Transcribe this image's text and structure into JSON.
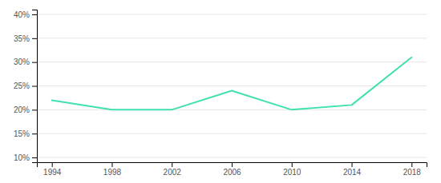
{
  "chart_data": {
    "type": "line",
    "x": [
      1994,
      1998,
      2002,
      2006,
      2010,
      2014,
      2018
    ],
    "values": [
      22,
      20,
      20,
      24,
      20,
      21,
      31
    ],
    "color": "#40e0b0",
    "xlim": [
      1993,
      2019
    ],
    "ylim": [
      9,
      41
    ],
    "xticks": [
      1994,
      1998,
      2002,
      2006,
      2010,
      2014,
      2018
    ],
    "yticks": [
      {
        "value": 10,
        "label": "10%"
      },
      {
        "value": 15,
        "label": "15%"
      },
      {
        "value": 20,
        "label": "20%"
      },
      {
        "value": 25,
        "label": "25%"
      },
      {
        "value": 30,
        "label": "30%"
      },
      {
        "value": 35,
        "label": "35%"
      },
      {
        "value": 40,
        "label": "40%"
      }
    ],
    "grid": true
  }
}
